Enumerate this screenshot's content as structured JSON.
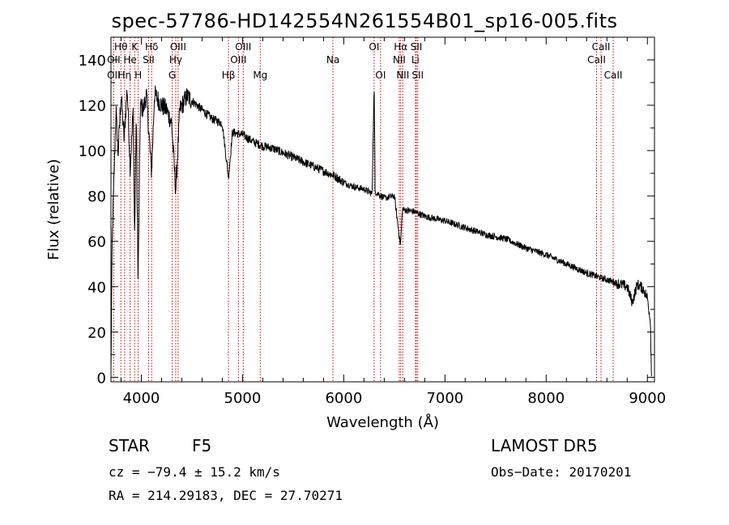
{
  "chart_data": {
    "type": "line",
    "title": "spec-57786-HD142554N261554B01_sp16-005.fits",
    "xlabel": "Wavelength (Å)",
    "ylabel": "Flux (relative)",
    "xlim": [
      3700,
      9070
    ],
    "ylim": [
      -2,
      150
    ],
    "xticks": [
      4000,
      5000,
      6000,
      7000,
      8000,
      9000
    ],
    "yticks": [
      0,
      20,
      40,
      60,
      80,
      100,
      120,
      140
    ],
    "grid": false,
    "line_color": "#000000",
    "marker_color": "#cc0000",
    "spectrum_anchor_points": [
      [
        3700,
        2
      ],
      [
        3712,
        60
      ],
      [
        3730,
        88
      ],
      [
        3750,
        118
      ],
      [
        3770,
        98
      ],
      [
        3800,
        125
      ],
      [
        3830,
        105
      ],
      [
        3860,
        128
      ],
      [
        3890,
        92
      ],
      [
        3920,
        118
      ],
      [
        3933,
        60
      ],
      [
        3950,
        115
      ],
      [
        3968,
        40
      ],
      [
        3990,
        120
      ],
      [
        4020,
        118
      ],
      [
        4050,
        125
      ],
      [
        4101,
        90
      ],
      [
        4130,
        125
      ],
      [
        4200,
        120
      ],
      [
        4250,
        118
      ],
      [
        4300,
        112
      ],
      [
        4340,
        82
      ],
      [
        4380,
        118
      ],
      [
        4450,
        124
      ],
      [
        4500,
        122
      ],
      [
        4600,
        118
      ],
      [
        4700,
        114
      ],
      [
        4800,
        112
      ],
      [
        4861,
        88
      ],
      [
        4900,
        108
      ],
      [
        5000,
        107
      ],
      [
        5100,
        104
      ],
      [
        5200,
        102
      ],
      [
        5300,
        101
      ],
      [
        5400,
        99
      ],
      [
        5500,
        97
      ],
      [
        5600,
        95
      ],
      [
        5700,
        93
      ],
      [
        5800,
        91
      ],
      [
        5900,
        89
      ],
      [
        6000,
        86
      ],
      [
        6100,
        84
      ],
      [
        6200,
        83
      ],
      [
        6280,
        81
      ],
      [
        6300,
        130
      ],
      [
        6310,
        82
      ],
      [
        6400,
        79
      ],
      [
        6500,
        80
      ],
      [
        6560,
        58
      ],
      [
        6580,
        74
      ],
      [
        6700,
        73
      ],
      [
        6800,
        71
      ],
      [
        7000,
        69
      ],
      [
        7200,
        66
      ],
      [
        7400,
        63
      ],
      [
        7600,
        61
      ],
      [
        7800,
        57
      ],
      [
        8000,
        54
      ],
      [
        8200,
        50
      ],
      [
        8400,
        46
      ],
      [
        8600,
        43
      ],
      [
        8800,
        40
      ],
      [
        8850,
        33
      ],
      [
        8900,
        41
      ],
      [
        8960,
        39
      ],
      [
        9000,
        35
      ],
      [
        9030,
        25
      ],
      [
        9040,
        0
      ]
    ],
    "line_markers": [
      {
        "label": "Hθ",
        "wavelength": 3798,
        "row": 1
      },
      {
        "label": "K",
        "wavelength": 3934,
        "row": 1
      },
      {
        "label": "Hδ",
        "wavelength": 4102,
        "row": 1
      },
      {
        "label": "OIII",
        "wavelength": 4363,
        "row": 1
      },
      {
        "label": "OIII",
        "wavelength": 5007,
        "row": 1
      },
      {
        "label": "OI",
        "wavelength": 6300,
        "row": 1
      },
      {
        "label": "Hα",
        "wavelength": 6563,
        "row": 1
      },
      {
        "label": "SII",
        "wavelength": 6717,
        "row": 1
      },
      {
        "label": "CaII",
        "wavelength": 8542,
        "row": 1
      },
      {
        "label": "OII",
        "wavelength": 3727,
        "row": 2
      },
      {
        "label": "He",
        "wavelength": 3889,
        "row": 2
      },
      {
        "label": "SII",
        "wavelength": 4072,
        "row": 2
      },
      {
        "label": "Hγ",
        "wavelength": 4340,
        "row": 2
      },
      {
        "label": "OIII",
        "wavelength": 4959,
        "row": 2
      },
      {
        "label": "Na",
        "wavelength": 5893,
        "row": 2
      },
      {
        "label": "NII",
        "wavelength": 6548,
        "row": 2
      },
      {
        "label": "Li",
        "wavelength": 6708,
        "row": 2
      },
      {
        "label": "CaII",
        "wavelength": 8498,
        "row": 2
      },
      {
        "label": "OII",
        "wavelength": 3727,
        "row": 3
      },
      {
        "label": "Hη",
        "wavelength": 3835,
        "row": 3
      },
      {
        "label": "H",
        "wavelength": 3969,
        "row": 3
      },
      {
        "label": "G",
        "wavelength": 4305,
        "row": 3
      },
      {
        "label": "Hβ",
        "wavelength": 4861,
        "row": 3
      },
      {
        "label": "Mg",
        "wavelength": 5175,
        "row": 3
      },
      {
        "label": "OI",
        "wavelength": 6364,
        "row": 3
      },
      {
        "label": "NII",
        "wavelength": 6583,
        "row": 3
      },
      {
        "label": "SII",
        "wavelength": 6731,
        "row": 3
      },
      {
        "label": "CaII",
        "wavelength": 8662,
        "row": 3
      }
    ]
  },
  "info": {
    "object_class": "STAR",
    "subclass": "F5",
    "survey": "LAMOST DR5",
    "redshift": "cz = −79.4 ± 15.2 km/s",
    "obs_date": "Obs−Date: 20170201",
    "coords": "RA = 214.29183, DEC =  27.70271"
  }
}
